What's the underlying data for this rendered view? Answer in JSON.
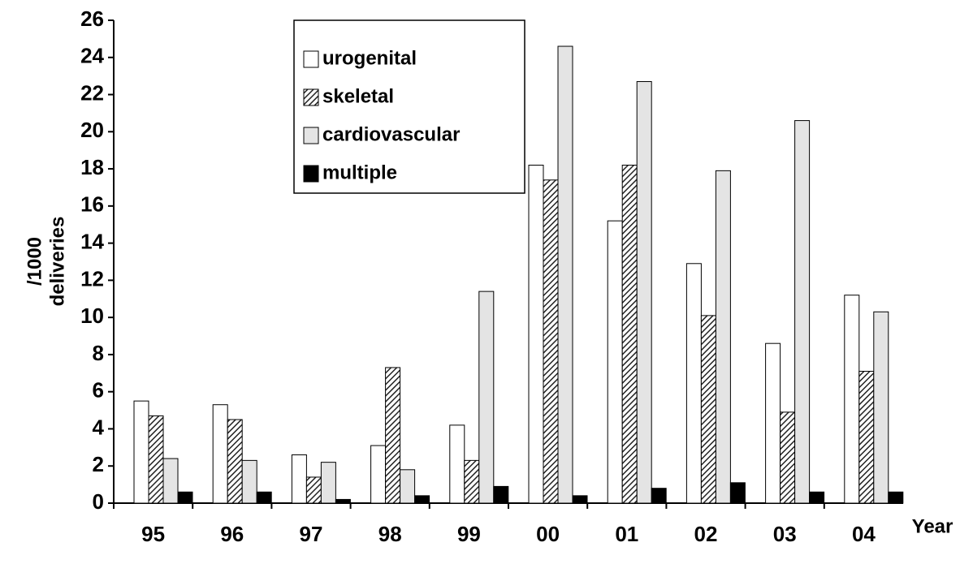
{
  "chart_data": {
    "type": "bar",
    "y_label_lines": [
      "/1000",
      "deliveries"
    ],
    "x_label": "Year",
    "categories": [
      "95",
      "96",
      "97",
      "98",
      "99",
      "00",
      "01",
      "02",
      "03",
      "04"
    ],
    "series": [
      {
        "name": "urogenital",
        "color": "#ffffff",
        "values": [
          5.5,
          5.3,
          2.6,
          3.1,
          4.2,
          18.2,
          15.2,
          12.9,
          8.6,
          11.2
        ]
      },
      {
        "name": "skeletal",
        "color": "#555555",
        "pattern": "hatch",
        "values": [
          4.7,
          4.5,
          1.4,
          7.3,
          2.3,
          17.4,
          18.2,
          10.1,
          4.9,
          7.1
        ]
      },
      {
        "name": "cardiovascular",
        "color": "#e4e4e4",
        "values": [
          2.4,
          2.3,
          2.2,
          1.8,
          11.4,
          24.6,
          22.7,
          17.9,
          20.6,
          10.3
        ]
      },
      {
        "name": "multiple",
        "color": "#000000",
        "values": [
          0.6,
          0.6,
          0.2,
          0.4,
          0.9,
          0.4,
          0.8,
          1.1,
          0.6,
          0.6
        ]
      }
    ],
    "ylim": [
      0,
      26
    ],
    "yticks": [
      0,
      2,
      4,
      6,
      8,
      10,
      12,
      14,
      16,
      18,
      20,
      22,
      24,
      26
    ],
    "grid": false,
    "legend": "top"
  }
}
